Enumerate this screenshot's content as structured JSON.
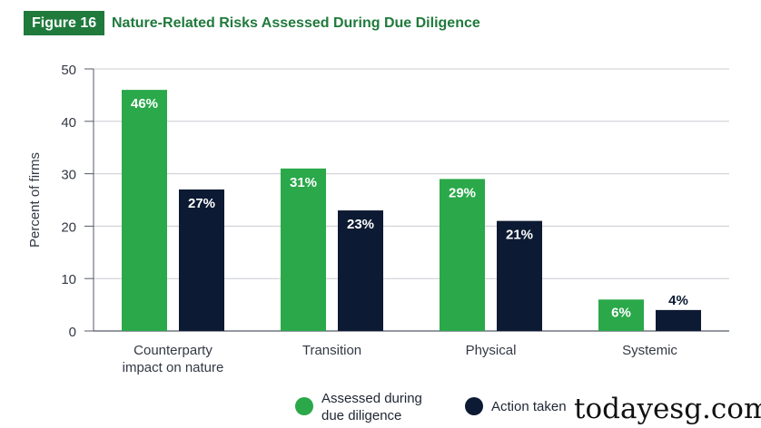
{
  "figure": {
    "tag": "Figure 16",
    "title": "Nature-Related Risks Assessed During Due Diligence"
  },
  "chart_data": {
    "type": "bar",
    "title": "Nature-Related Risks Assessed During Due Diligence",
    "xlabel": "",
    "ylabel": "Percent of firms",
    "ylim": [
      0,
      50
    ],
    "yticks": [
      0,
      10,
      20,
      30,
      40,
      50
    ],
    "grid": true,
    "categories": [
      [
        "Counterparty",
        "impact on nature"
      ],
      [
        "Transition"
      ],
      [
        "Physical"
      ],
      [
        "Systemic"
      ]
    ],
    "series": [
      {
        "name": "Assessed during due diligence",
        "legend_lines": [
          "Assessed during",
          "due diligence"
        ],
        "color": "#2aa84a",
        "values": [
          46,
          31,
          29,
          6
        ],
        "labels": [
          "46%",
          "31%",
          "29%",
          "6%"
        ]
      },
      {
        "name": "Action taken",
        "legend_lines": [
          "Action taken"
        ],
        "color": "#0c1a33",
        "values": [
          27,
          23,
          21,
          4
        ],
        "labels": [
          "27%",
          "23%",
          "21%",
          "4%"
        ]
      }
    ],
    "legend_position": "bottom"
  },
  "watermark": "todayesg.com"
}
